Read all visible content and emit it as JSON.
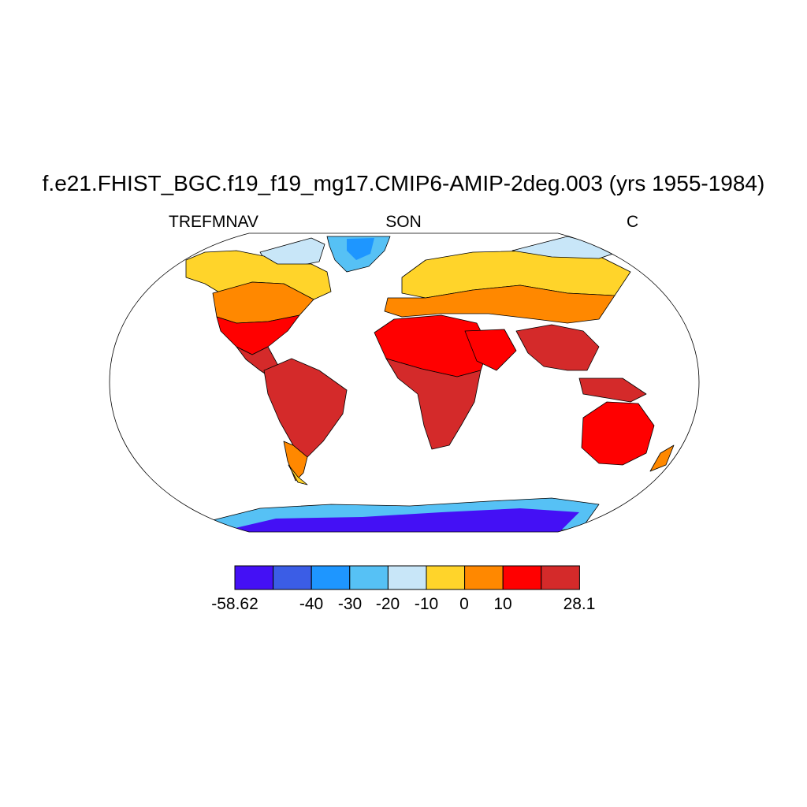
{
  "title": "f.e21.FHIST_BGC.f19_f19_mg17.CMIP6-AMIP-2deg.003 (yrs 1955-1984)",
  "subtitle_left": "TREFMNAV",
  "subtitle_center": "SON",
  "subtitle_right": "C",
  "colorbar": {
    "colors": [
      "#4410f5",
      "#3b5de6",
      "#1e96ff",
      "#56c1f5",
      "#c8e6f8",
      "#ffd42a",
      "#ff8800",
      "#ff0000",
      "#d42a2a"
    ],
    "labels": [
      "-58.62",
      "-40",
      "-30",
      "-20",
      "-10",
      "0",
      "10",
      "28.1"
    ]
  }
}
